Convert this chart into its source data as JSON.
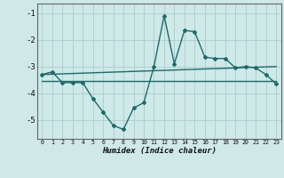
{
  "x": [
    0,
    1,
    2,
    3,
    4,
    5,
    6,
    7,
    8,
    9,
    10,
    11,
    12,
    13,
    14,
    15,
    16,
    17,
    18,
    19,
    20,
    21,
    22,
    23
  ],
  "line1": [
    -3.3,
    -3.2,
    -3.6,
    -3.6,
    -3.6,
    -4.2,
    -4.7,
    -5.2,
    -5.35,
    -4.55,
    -4.35,
    -3.0,
    -1.1,
    -2.9,
    -1.65,
    -1.7,
    -2.65,
    -2.7,
    -2.7,
    -3.05,
    -3.0,
    -3.05,
    -3.3,
    -3.65
  ],
  "line2_x": [
    0,
    23
  ],
  "line2_y": [
    -3.55,
    -3.55
  ],
  "line3_x": [
    0,
    23
  ],
  "line3_y": [
    -3.3,
    -3.0
  ],
  "xlim": [
    -0.5,
    23.5
  ],
  "ylim": [
    -5.7,
    -0.65
  ],
  "yticks": [
    -5,
    -4,
    -3,
    -2,
    -1
  ],
  "xticks": [
    0,
    1,
    2,
    3,
    4,
    5,
    6,
    7,
    8,
    9,
    10,
    11,
    12,
    13,
    14,
    15,
    16,
    17,
    18,
    19,
    20,
    21,
    22,
    23
  ],
  "xlabel": "Humidex (Indice chaleur)",
  "bg_color": "#cfe8e8",
  "line_color": "#1a6b6b",
  "grid_color": "#b0d0d0",
  "spine_color": "#666666"
}
